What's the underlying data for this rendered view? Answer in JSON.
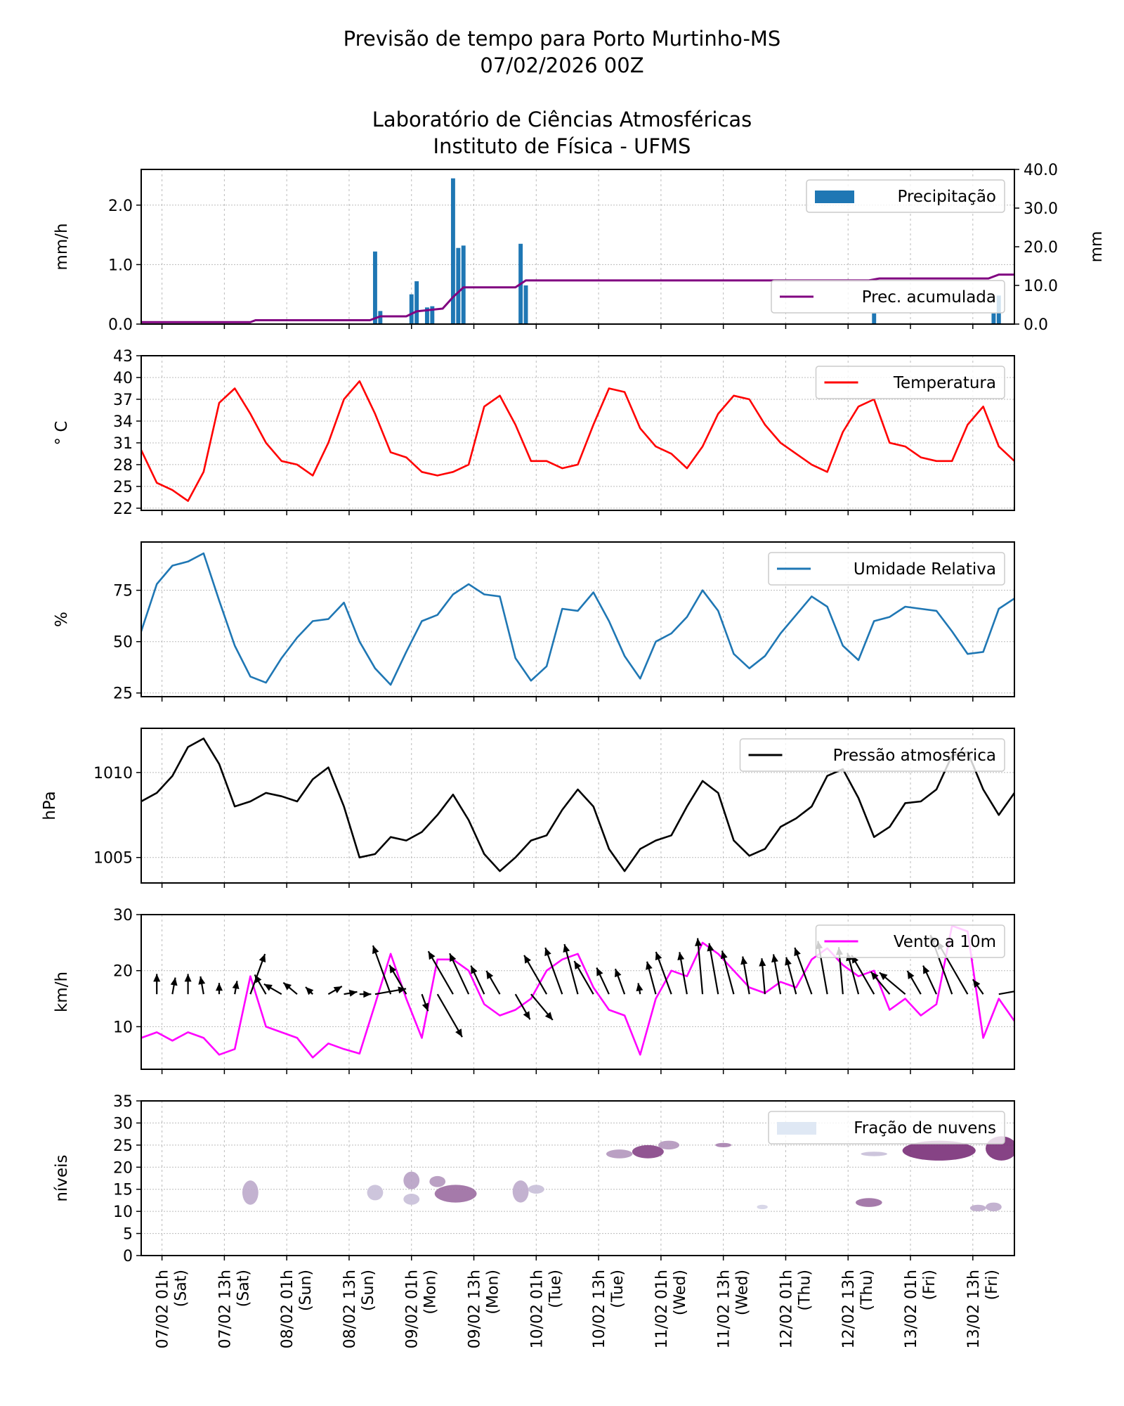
{
  "titles": {
    "line1": "Previsão de tempo para Porto Murtinho-MS",
    "line2": "07/02/2026 00Z",
    "line3": "Laboratório de Ciências Atmosféricas",
    "line4": "Instituto de Física - UFMS"
  },
  "chart_data": [
    {
      "type": "bar",
      "ylabel": "mm/h",
      "ylim": [
        0,
        2.6
      ],
      "yticks": [
        "0.0",
        "1.0",
        "2.0"
      ],
      "y2label": "mm",
      "y2lim": [
        0,
        40
      ],
      "y2ticks": [
        "0.0",
        "10.0",
        "20.0",
        "30.0",
        "40.0"
      ],
      "grid": true,
      "legend": [
        {
          "label": "Precipitação",
          "placement": "upper-right",
          "color": "#1f77b4"
        },
        {
          "label": "Prec. acumulada",
          "placement": "lower-right",
          "color": "#800080"
        }
      ],
      "precipitation": [
        [
          "08/02 18h",
          1.22
        ],
        [
          "08/02 19h",
          0.22
        ],
        [
          "09/02 01h",
          0.5
        ],
        [
          "09/02 02h",
          0.72
        ],
        [
          "09/02 04h",
          0.28
        ],
        [
          "09/02 05h",
          0.3
        ],
        [
          "09/02 09h",
          2.45
        ],
        [
          "09/02 10h",
          1.28
        ],
        [
          "09/02 11h",
          1.32
        ],
        [
          "09/02 22h",
          1.35
        ],
        [
          "09/02 23h",
          0.65
        ],
        [
          "12/02 18h",
          0.18
        ],
        [
          "13/02 17h",
          0.18
        ],
        [
          "13/02 18h",
          0.48
        ]
      ],
      "accumulated": [
        [
          "06/02 21h",
          0.5
        ],
        [
          "07/02 18h",
          0.5
        ],
        [
          "07/02 19h",
          1.0
        ],
        [
          "08/02 17h",
          1.0
        ],
        [
          "08/02 19h",
          2.0
        ],
        [
          "09/02 00h",
          2.0
        ],
        [
          "09/02 02h",
          3.3
        ],
        [
          "09/02 07h",
          4.0
        ],
        [
          "09/02 09h",
          7.0
        ],
        [
          "09/02 11h",
          9.5
        ],
        [
          "09/02 21h",
          9.5
        ],
        [
          "09/02 23h",
          11.3
        ],
        [
          "12/02 17h",
          11.3
        ],
        [
          "12/02 19h",
          11.8
        ],
        [
          "13/02 16h",
          11.8
        ],
        [
          "13/02 18h",
          12.8
        ],
        [
          "13/02 21h",
          12.8
        ]
      ]
    },
    {
      "type": "line",
      "ylabel": "° C",
      "ylim": [
        21.7,
        43
      ],
      "yticks": [
        22,
        25,
        28,
        31,
        34,
        37,
        40,
        43
      ],
      "grid": true,
      "legend": [
        {
          "label": "Temperatura",
          "placement": "upper-right",
          "color": "#ff0000"
        }
      ],
      "time_start": "06/02 21h",
      "time_step_h": 3,
      "values": [
        30,
        25.5,
        24.5,
        23,
        27,
        36.5,
        38.5,
        35,
        31,
        28.5,
        28,
        26.5,
        31,
        37,
        39.5,
        35,
        29.7,
        29,
        27,
        26.5,
        27,
        28,
        36,
        37.5,
        33.5,
        28.5,
        28.5,
        27.5,
        28,
        33.5,
        38.5,
        38,
        33,
        30.5,
        29.5,
        27.5,
        30.5,
        35,
        37.5,
        37,
        33.5,
        31,
        29.5,
        28,
        27,
        32.5,
        36,
        37,
        31,
        30.5,
        29,
        28.5,
        28.5,
        33.5,
        36,
        30.5,
        28.5
      ]
    },
    {
      "type": "line",
      "ylabel": "%",
      "ylim": [
        23.2,
        98.5
      ],
      "yticks": [
        25,
        50,
        75
      ],
      "grid": true,
      "legend": [
        {
          "label": "Umidade Relativa",
          "placement": "upper-right",
          "color": "#1f77b4"
        }
      ],
      "time_start": "06/02 21h",
      "time_step_h": 3,
      "values": [
        55,
        78,
        87,
        89,
        93,
        70,
        48,
        33,
        30,
        42,
        52,
        60,
        61,
        69,
        50,
        37,
        29,
        45,
        60,
        63,
        73,
        78,
        73,
        72,
        42,
        31,
        38,
        66,
        65,
        74,
        60,
        43,
        32,
        50,
        54,
        62,
        75,
        65,
        44,
        37,
        43,
        54,
        63,
        72,
        67,
        48,
        41,
        60,
        62,
        67,
        66,
        65,
        55,
        44,
        45,
        66,
        71
      ]
    },
    {
      "type": "line",
      "ylabel": "hPa",
      "ylim": [
        1003.5,
        1012.6
      ],
      "yticks": [
        1005,
        1010
      ],
      "grid": true,
      "legend": [
        {
          "label": "Pressão atmosférica",
          "placement": "upper-right",
          "color": "#000000"
        }
      ],
      "time_start": "06/02 21h",
      "time_step_h": 3,
      "values": [
        1008.3,
        1008.8,
        1009.8,
        1011.5,
        1012.0,
        1010.5,
        1008.0,
        1008.3,
        1008.8,
        1008.6,
        1008.3,
        1009.6,
        1010.3,
        1008.0,
        1005.0,
        1005.2,
        1006.2,
        1006.0,
        1006.5,
        1007.5,
        1008.7,
        1007.2,
        1005.2,
        1004.2,
        1005.0,
        1006.0,
        1006.3,
        1007.8,
        1009.0,
        1008.0,
        1005.5,
        1004.2,
        1005.5,
        1006.0,
        1006.3,
        1008.0,
        1009.5,
        1008.8,
        1006.0,
        1005.1,
        1005.5,
        1006.8,
        1007.3,
        1008.0,
        1009.8,
        1010.2,
        1008.5,
        1006.2,
        1006.8,
        1008.2,
        1008.3,
        1009.0,
        1011.0,
        1011.2,
        1009.0,
        1007.5,
        1008.8
      ]
    },
    {
      "type": "line",
      "ylabel": "km/h",
      "ylim": [
        2.4,
        30
      ],
      "yticks": [
        10,
        20,
        30
      ],
      "grid": true,
      "legend": [
        {
          "label": "Vento a 10m",
          "placement": "upper-right",
          "color": "#ff00ff"
        }
      ],
      "time_start": "06/02 21h",
      "time_step_h": 3,
      "values": [
        8,
        9,
        7.5,
        9,
        8,
        5,
        6,
        19,
        10,
        9,
        8,
        4.5,
        7,
        6,
        5.2,
        14,
        23,
        15,
        8,
        22,
        22,
        20,
        14,
        12,
        13,
        15,
        20,
        22,
        23,
        17,
        13,
        12,
        5,
        15,
        20,
        19,
        25,
        23,
        20,
        17,
        16,
        18,
        17,
        22,
        24,
        21,
        19,
        20,
        13,
        15,
        12,
        14,
        28,
        27,
        8,
        15,
        11
      ],
      "wind_direction_deg": [
        20,
        0,
        350,
        0,
        10,
        0,
        350,
        340,
        30,
        60,
        50,
        45,
        300,
        280,
        270,
        280,
        20,
        30,
        200,
        210,
        30,
        25,
        25,
        30,
        210,
        220,
        30,
        20,
        15,
        30,
        25,
        20,
        10,
        15,
        20,
        10,
        5,
        10,
        15,
        10,
        5,
        10,
        15,
        20,
        10,
        5,
        15,
        30,
        40,
        50,
        30,
        25,
        20,
        30,
        35,
        280,
        300
      ]
    },
    {
      "type": "heatmap",
      "ylabel": "níveis",
      "ylim": [
        0,
        35
      ],
      "yticks": [
        0,
        5,
        10,
        15,
        20,
        25,
        30,
        35
      ],
      "grid": true,
      "legend": [
        {
          "label": "Fração de nuvens",
          "placement": "upper-right",
          "color": "#dfe8f4"
        }
      ],
      "cloud_patches": [
        {
          "from": "07/02 17h",
          "to": "07/02 19h",
          "level_low": 11.5,
          "level_high": 17,
          "fraction": 0.3
        },
        {
          "from": "08/02 17h",
          "to": "08/02 19h",
          "level_low": 12.5,
          "level_high": 16,
          "fraction": 0.2
        },
        {
          "from": "09/02 00h",
          "to": "09/02 02h",
          "level_low": 15,
          "level_high": 19,
          "fraction": 0.35
        },
        {
          "from": "09/02 00h",
          "to": "09/02 02h",
          "level_low": 11.5,
          "level_high": 14,
          "fraction": 0.2
        },
        {
          "from": "09/02 05h",
          "to": "09/02 07h",
          "level_low": 15.5,
          "level_high": 18,
          "fraction": 0.4
        },
        {
          "from": "09/02 06h",
          "to": "09/02 13h",
          "level_low": 12,
          "level_high": 16,
          "fraction": 0.6
        },
        {
          "from": "09/02 21h",
          "to": "09/02 23h",
          "level_low": 12,
          "level_high": 17,
          "fraction": 0.3
        },
        {
          "from": "10/02 00h",
          "to": "10/02 02h",
          "level_low": 14,
          "level_high": 16,
          "fraction": 0.2
        },
        {
          "from": "10/02 15h",
          "to": "10/02 19h",
          "level_low": 22,
          "level_high": 24,
          "fraction": 0.4
        },
        {
          "from": "10/02 20h",
          "to": "11/02 01h",
          "level_low": 22,
          "level_high": 25,
          "fraction": 0.8
        },
        {
          "from": "11/02 01h",
          "to": "11/02 04h",
          "level_low": 24,
          "level_high": 26,
          "fraction": 0.4
        },
        {
          "from": "11/02 12h",
          "to": "11/02 14h",
          "level_low": 24.5,
          "level_high": 25.5,
          "fraction": 0.5
        },
        {
          "from": "11/02 20h",
          "to": "11/02 21h",
          "level_low": 10.5,
          "level_high": 11.5,
          "fraction": 0.1
        },
        {
          "from": "12/02 15h",
          "to": "12/02 19h",
          "level_low": 11,
          "level_high": 13,
          "fraction": 0.6
        },
        {
          "from": "12/02 16h",
          "to": "12/02 20h",
          "level_low": 22.5,
          "level_high": 23.5,
          "fraction": 0.2
        },
        {
          "from": "13/02 00h",
          "to": "13/02 13h",
          "level_low": 21.5,
          "level_high": 26,
          "fraction": 0.9
        },
        {
          "from": "13/02 13h",
          "to": "13/02 15h",
          "level_low": 10,
          "level_high": 11.5,
          "fraction": 0.3
        },
        {
          "from": "13/02 16h",
          "to": "13/02 18h",
          "level_low": 10,
          "level_high": 12,
          "fraction": 0.3
        },
        {
          "from": "13/02 16h",
          "to": "13/02 21h",
          "level_low": 21.5,
          "level_high": 27,
          "fraction": 0.9
        }
      ]
    }
  ],
  "x_axis": {
    "range": [
      "06/02 21h",
      "13/02 21h"
    ],
    "ticks": [
      {
        "time": "07/02 01h",
        "day": "(Sat)"
      },
      {
        "time": "07/02 13h",
        "day": "(Sat)"
      },
      {
        "time": "08/02 01h",
        "day": "(Sun)"
      },
      {
        "time": "08/02 13h",
        "day": "(Sun)"
      },
      {
        "time": "09/02 01h",
        "day": "(Mon)"
      },
      {
        "time": "09/02 13h",
        "day": "(Mon)"
      },
      {
        "time": "10/02 01h",
        "day": "(Tue)"
      },
      {
        "time": "10/02 13h",
        "day": "(Tue)"
      },
      {
        "time": "11/02 01h",
        "day": "(Wed)"
      },
      {
        "time": "11/02 13h",
        "day": "(Wed)"
      },
      {
        "time": "12/02 01h",
        "day": "(Thu)"
      },
      {
        "time": "12/02 13h",
        "day": "(Thu)"
      },
      {
        "time": "13/02 01h",
        "day": "(Fri)"
      },
      {
        "time": "13/02 13h",
        "day": "(Fri)"
      }
    ]
  }
}
